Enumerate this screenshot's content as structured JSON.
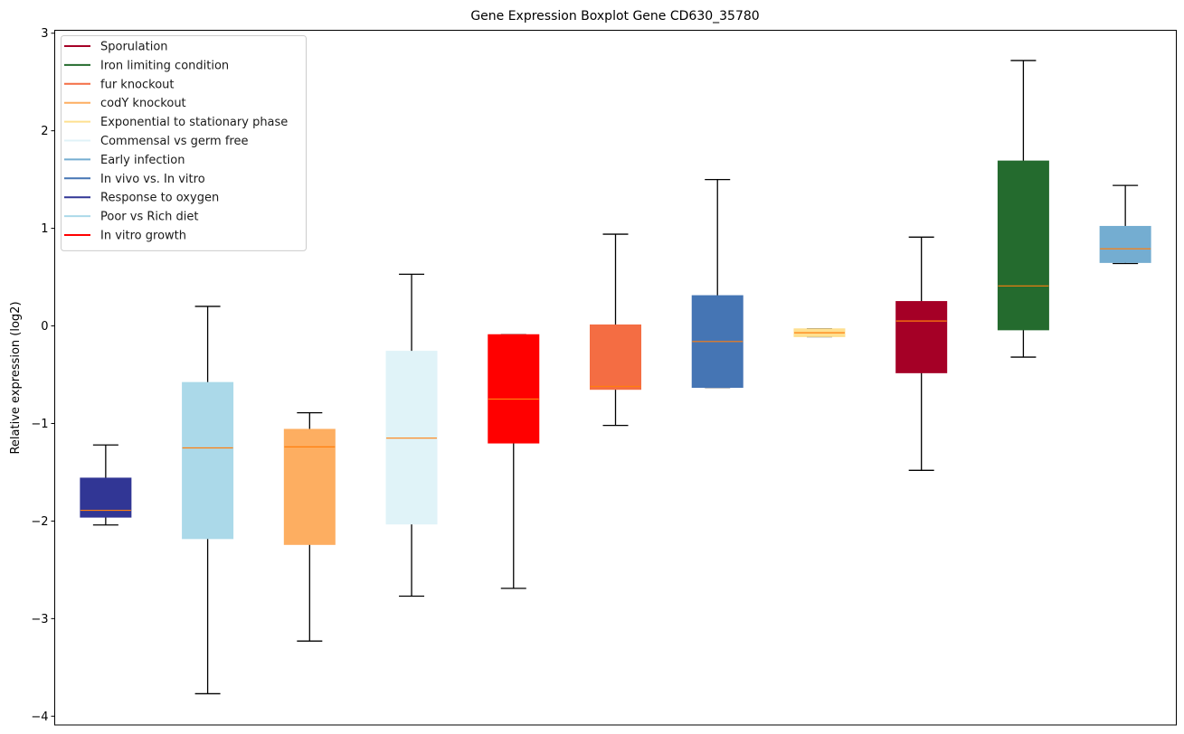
{
  "chart_data": {
    "type": "box",
    "title": "Gene Expression Boxplot Gene CD630_35780",
    "xlabel": "",
    "ylabel": "Relative expression (log2)",
    "ylim": [
      -4.09,
      3.03
    ],
    "yticks": [
      3,
      2,
      1,
      0,
      -1,
      -2,
      -3,
      -4
    ],
    "ytick_labels": [
      "3",
      "2",
      "1",
      "0",
      "−1",
      "−2",
      "−3",
      "−4"
    ],
    "grid": false,
    "legend_position": "top-left",
    "median_color": "#ff7f0e",
    "series": [
      {
        "name": "Response to oxygen",
        "color": "#313695",
        "whisker_low": -2.04,
        "q1": -1.96,
        "median": -1.89,
        "q3": -1.56,
        "whisker_high": -1.22
      },
      {
        "name": "Poor vs Rich diet",
        "color": "#abd9e9",
        "whisker_low": -3.77,
        "q1": -2.18,
        "median": -1.25,
        "q3": -0.58,
        "whisker_high": 0.2
      },
      {
        "name": "codY knockout",
        "color": "#fdae61",
        "whisker_low": -3.23,
        "q1": -2.24,
        "median": -1.24,
        "q3": -1.06,
        "whisker_high": -0.89
      },
      {
        "name": "Commensal vs germ free",
        "color": "#e0f3f8",
        "whisker_low": -2.77,
        "q1": -2.03,
        "median": -1.15,
        "q3": -0.26,
        "whisker_high": 0.53
      },
      {
        "name": "In vitro growth",
        "color": "#ff0000",
        "whisker_low": -2.69,
        "q1": -1.2,
        "median": -0.75,
        "q3": -0.09,
        "whisker_high": -0.09
      },
      {
        "name": "fur knockout",
        "color": "#f46d43",
        "whisker_low": -1.02,
        "q1": -0.65,
        "median": -0.62,
        "q3": 0.01,
        "whisker_high": 0.94
      },
      {
        "name": "In vivo vs. In vitro",
        "color": "#4575b4",
        "whisker_low": -0.63,
        "q1": -0.63,
        "median": -0.16,
        "q3": 0.31,
        "whisker_high": 1.5
      },
      {
        "name": "Exponential to stationary phase",
        "color": "#fee090",
        "whisker_low": -0.11,
        "q1": -0.11,
        "median": -0.07,
        "q3": -0.03,
        "whisker_high": -0.03
      },
      {
        "name": "Sporulation",
        "color": "#a50026",
        "whisker_low": -1.48,
        "q1": -0.48,
        "median": 0.05,
        "q3": 0.25,
        "whisker_high": 0.91
      },
      {
        "name": "Iron limiting condition",
        "color": "#246b2e",
        "whisker_low": -0.32,
        "q1": -0.04,
        "median": 0.41,
        "q3": 1.69,
        "whisker_high": 2.72
      },
      {
        "name": "Early infection",
        "color": "#74add1",
        "whisker_low": 0.64,
        "q1": 0.65,
        "median": 0.79,
        "q3": 1.02,
        "whisker_high": 1.44
      }
    ],
    "legend": [
      {
        "label": "Sporulation",
        "color": "#a50026"
      },
      {
        "label": "Iron limiting condition",
        "color": "#246b2e"
      },
      {
        "label": "fur knockout",
        "color": "#f46d43"
      },
      {
        "label": "codY knockout",
        "color": "#fdae61"
      },
      {
        "label": "Exponential to stationary phase",
        "color": "#fee090"
      },
      {
        "label": "Commensal vs germ free",
        "color": "#e0f3f8"
      },
      {
        "label": "Early infection",
        "color": "#74add1"
      },
      {
        "label": "In vivo vs. In vitro",
        "color": "#4575b4"
      },
      {
        "label": "Response to oxygen",
        "color": "#313695"
      },
      {
        "label": "Poor vs Rich diet",
        "color": "#abd9e9"
      },
      {
        "label": "In vitro growth",
        "color": "#ff0000"
      }
    ]
  }
}
